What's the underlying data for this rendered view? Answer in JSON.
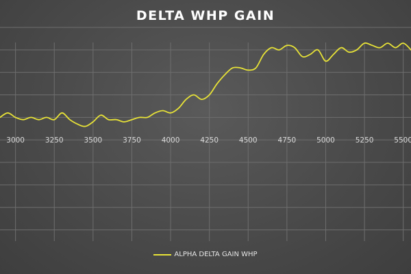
{
  "chart_data": {
    "type": "line",
    "title": "DELTA WHP GAIN",
    "xlabel": "",
    "ylabel": "",
    "xlim": [
      2900,
      5550
    ],
    "ylim": [
      -4.5,
      5
    ],
    "xticks": [
      3000,
      3250,
      3500,
      3750,
      4000,
      4250,
      4500,
      4750,
      5000,
      5250,
      5500
    ],
    "grid": true,
    "legend_position": "bottom",
    "series": [
      {
        "name": "ALPHA DELTA GAIN WHP",
        "color": "#e8e337",
        "x": [
          2900,
          2950,
          3000,
          3050,
          3100,
          3150,
          3200,
          3250,
          3300,
          3350,
          3400,
          3450,
          3500,
          3550,
          3600,
          3650,
          3700,
          3750,
          3800,
          3850,
          3900,
          3950,
          4000,
          4050,
          4100,
          4150,
          4200,
          4250,
          4300,
          4350,
          4400,
          4450,
          4500,
          4550,
          4600,
          4650,
          4700,
          4750,
          4800,
          4850,
          4900,
          4950,
          5000,
          5050,
          5100,
          5150,
          5200,
          5250,
          5300,
          5350,
          5400,
          5450,
          5500,
          5550
        ],
        "values": [
          1.0,
          1.2,
          1.0,
          0.9,
          1.0,
          0.9,
          1.0,
          0.9,
          1.2,
          0.9,
          0.7,
          0.6,
          0.8,
          1.1,
          0.9,
          0.9,
          0.8,
          0.9,
          1.0,
          1.0,
          1.2,
          1.3,
          1.2,
          1.4,
          1.8,
          2.0,
          1.8,
          2.0,
          2.5,
          2.9,
          3.2,
          3.2,
          3.1,
          3.2,
          3.8,
          4.1,
          4.0,
          4.2,
          4.1,
          3.7,
          3.8,
          4.0,
          3.5,
          3.8,
          4.1,
          3.9,
          4.0,
          4.3,
          4.2,
          4.1,
          4.3,
          4.1,
          4.3,
          4.0
        ]
      }
    ]
  }
}
